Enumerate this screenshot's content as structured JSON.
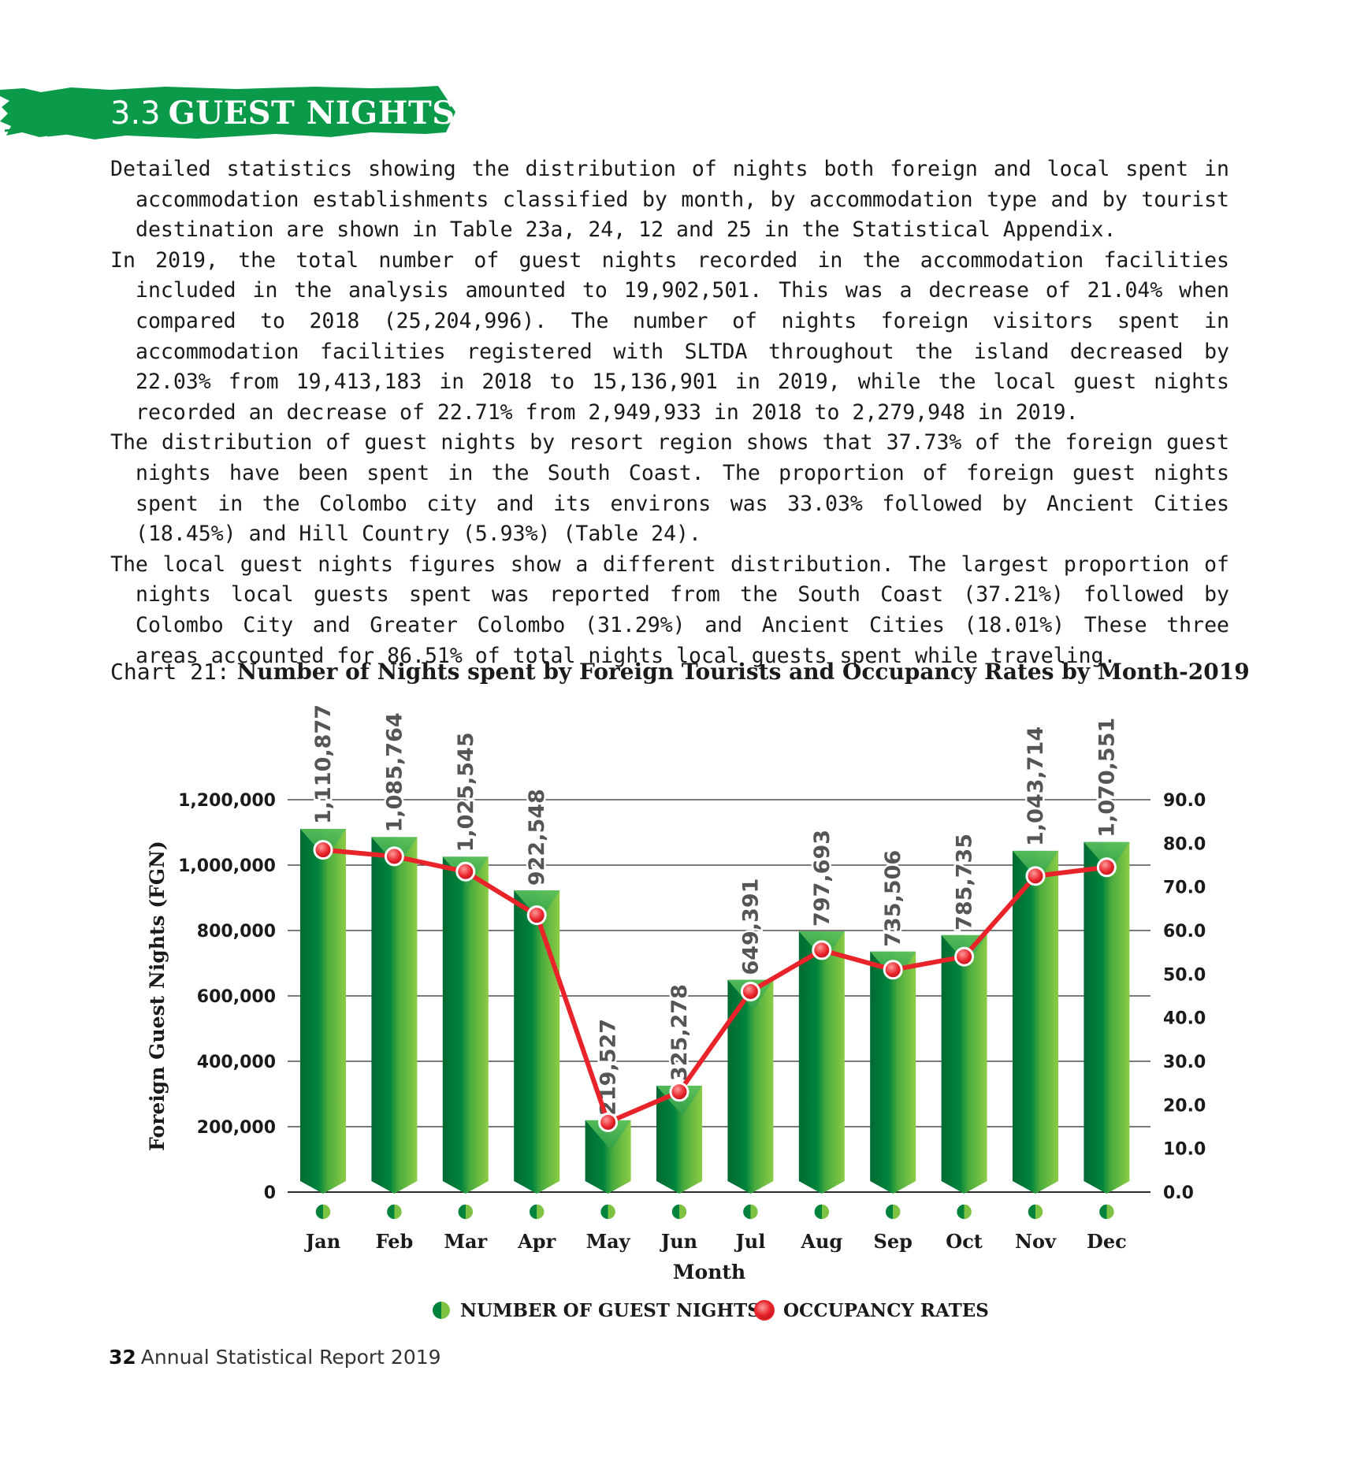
{
  "section": {
    "number": "3.3",
    "title": "GUEST NIGHTS"
  },
  "paragraphs": [
    "Detailed statistics showing the distribution of nights both foreign and local spent in accommodation establishments classified by month, by accommodation type and by tourist destination are shown in Table 23a, 24, 12 and 25 in the Statistical Appendix.",
    "In 2019, the total number of guest nights recorded in the accommodation facilities included in the analysis amounted to 19,902,501. This was a decrease of 21.04% when compared to 2018 (25,204,996). The number of nights foreign visitors spent in accommodation facilities registered with SLTDA throughout the island decreased by 22.03% from 19,413,183 in 2018 to 15,136,901 in 2019, while the local guest nights recorded an decrease of 22.71% from 2,949,933 in 2018 to 2,279,948 in 2019.",
    "The distribution of guest nights by resort region shows that 37.73% of the foreign guest nights have been spent in the South Coast. The proportion of foreign guest nights spent in the Colombo city and its environs was 33.03% followed by Ancient Cities (18.45%) and Hill Country (5.93%) (Table 24).",
    "The local guest nights figures show a different distribution. The largest proportion of nights local guests spent was reported from the South Coast (37.21%) followed by Colombo City and Greater Colombo (31.29%) and Ancient Cities (18.01%) These three areas accounted for 86.51% of total nights local guests spent while traveling."
  ],
  "chart_caption": {
    "label": "Chart 21:",
    "title": "Number of Nights spent by Foreign Tourists and Occupancy Rates by Month-2019"
  },
  "chart_data": {
    "type": "bar",
    "title": "Number of Nights spent by Foreign Tourists and Occupancy Rates by Month-2019",
    "xlabel": "Month",
    "ylabel": "Foreign Guest Nights (FGN)",
    "categories": [
      "Jan",
      "Feb",
      "Mar",
      "Apr",
      "May",
      "Jun",
      "Jul",
      "Aug",
      "Sep",
      "Oct",
      "Nov",
      "Dec"
    ],
    "series": [
      {
        "name": "NUMBER OF GUEST NIGHTS",
        "type": "bar",
        "axis": "left",
        "values": [
          1110877,
          1085764,
          1025545,
          922548,
          219527,
          325278,
          649391,
          797693,
          735506,
          785735,
          1043714,
          1070551
        ],
        "labels": [
          "1,110,877",
          "1,085,764",
          "1,025,545",
          "922,548",
          "219,527",
          "325,278",
          "649,391",
          "797,693",
          "735,506",
          "785,735",
          "1,043,714",
          "1,070,551"
        ],
        "color": "#00843d"
      },
      {
        "name": "OCCUPANCY RATES",
        "type": "line",
        "axis": "right",
        "values": [
          78.5,
          77.0,
          73.5,
          63.5,
          16.0,
          23.0,
          46.0,
          55.5,
          51.0,
          54.0,
          72.5,
          74.5
        ],
        "color": "#e8232a"
      }
    ],
    "ylim": [
      0,
      1200000
    ],
    "y_ticks": [
      "0",
      "200,000",
      "400,000",
      "600,000",
      "800,000",
      "1,000,000",
      "1,200,000"
    ],
    "y2lim": [
      0,
      90
    ],
    "y2_ticks": [
      "0.0",
      "10.0",
      "20.0",
      "30.0",
      "40.0",
      "50.0",
      "60.0",
      "70.0",
      "80.0",
      "90.0"
    ],
    "grid": true,
    "legend_position": "bottom-center"
  },
  "footer": {
    "page": "32",
    "report": "Annual Statistical Report 2019"
  },
  "colors": {
    "brand_green": "#0a9a4a",
    "bar_dark": "#00843d",
    "bar_light": "#7dc242",
    "line_red": "#e8232a"
  }
}
